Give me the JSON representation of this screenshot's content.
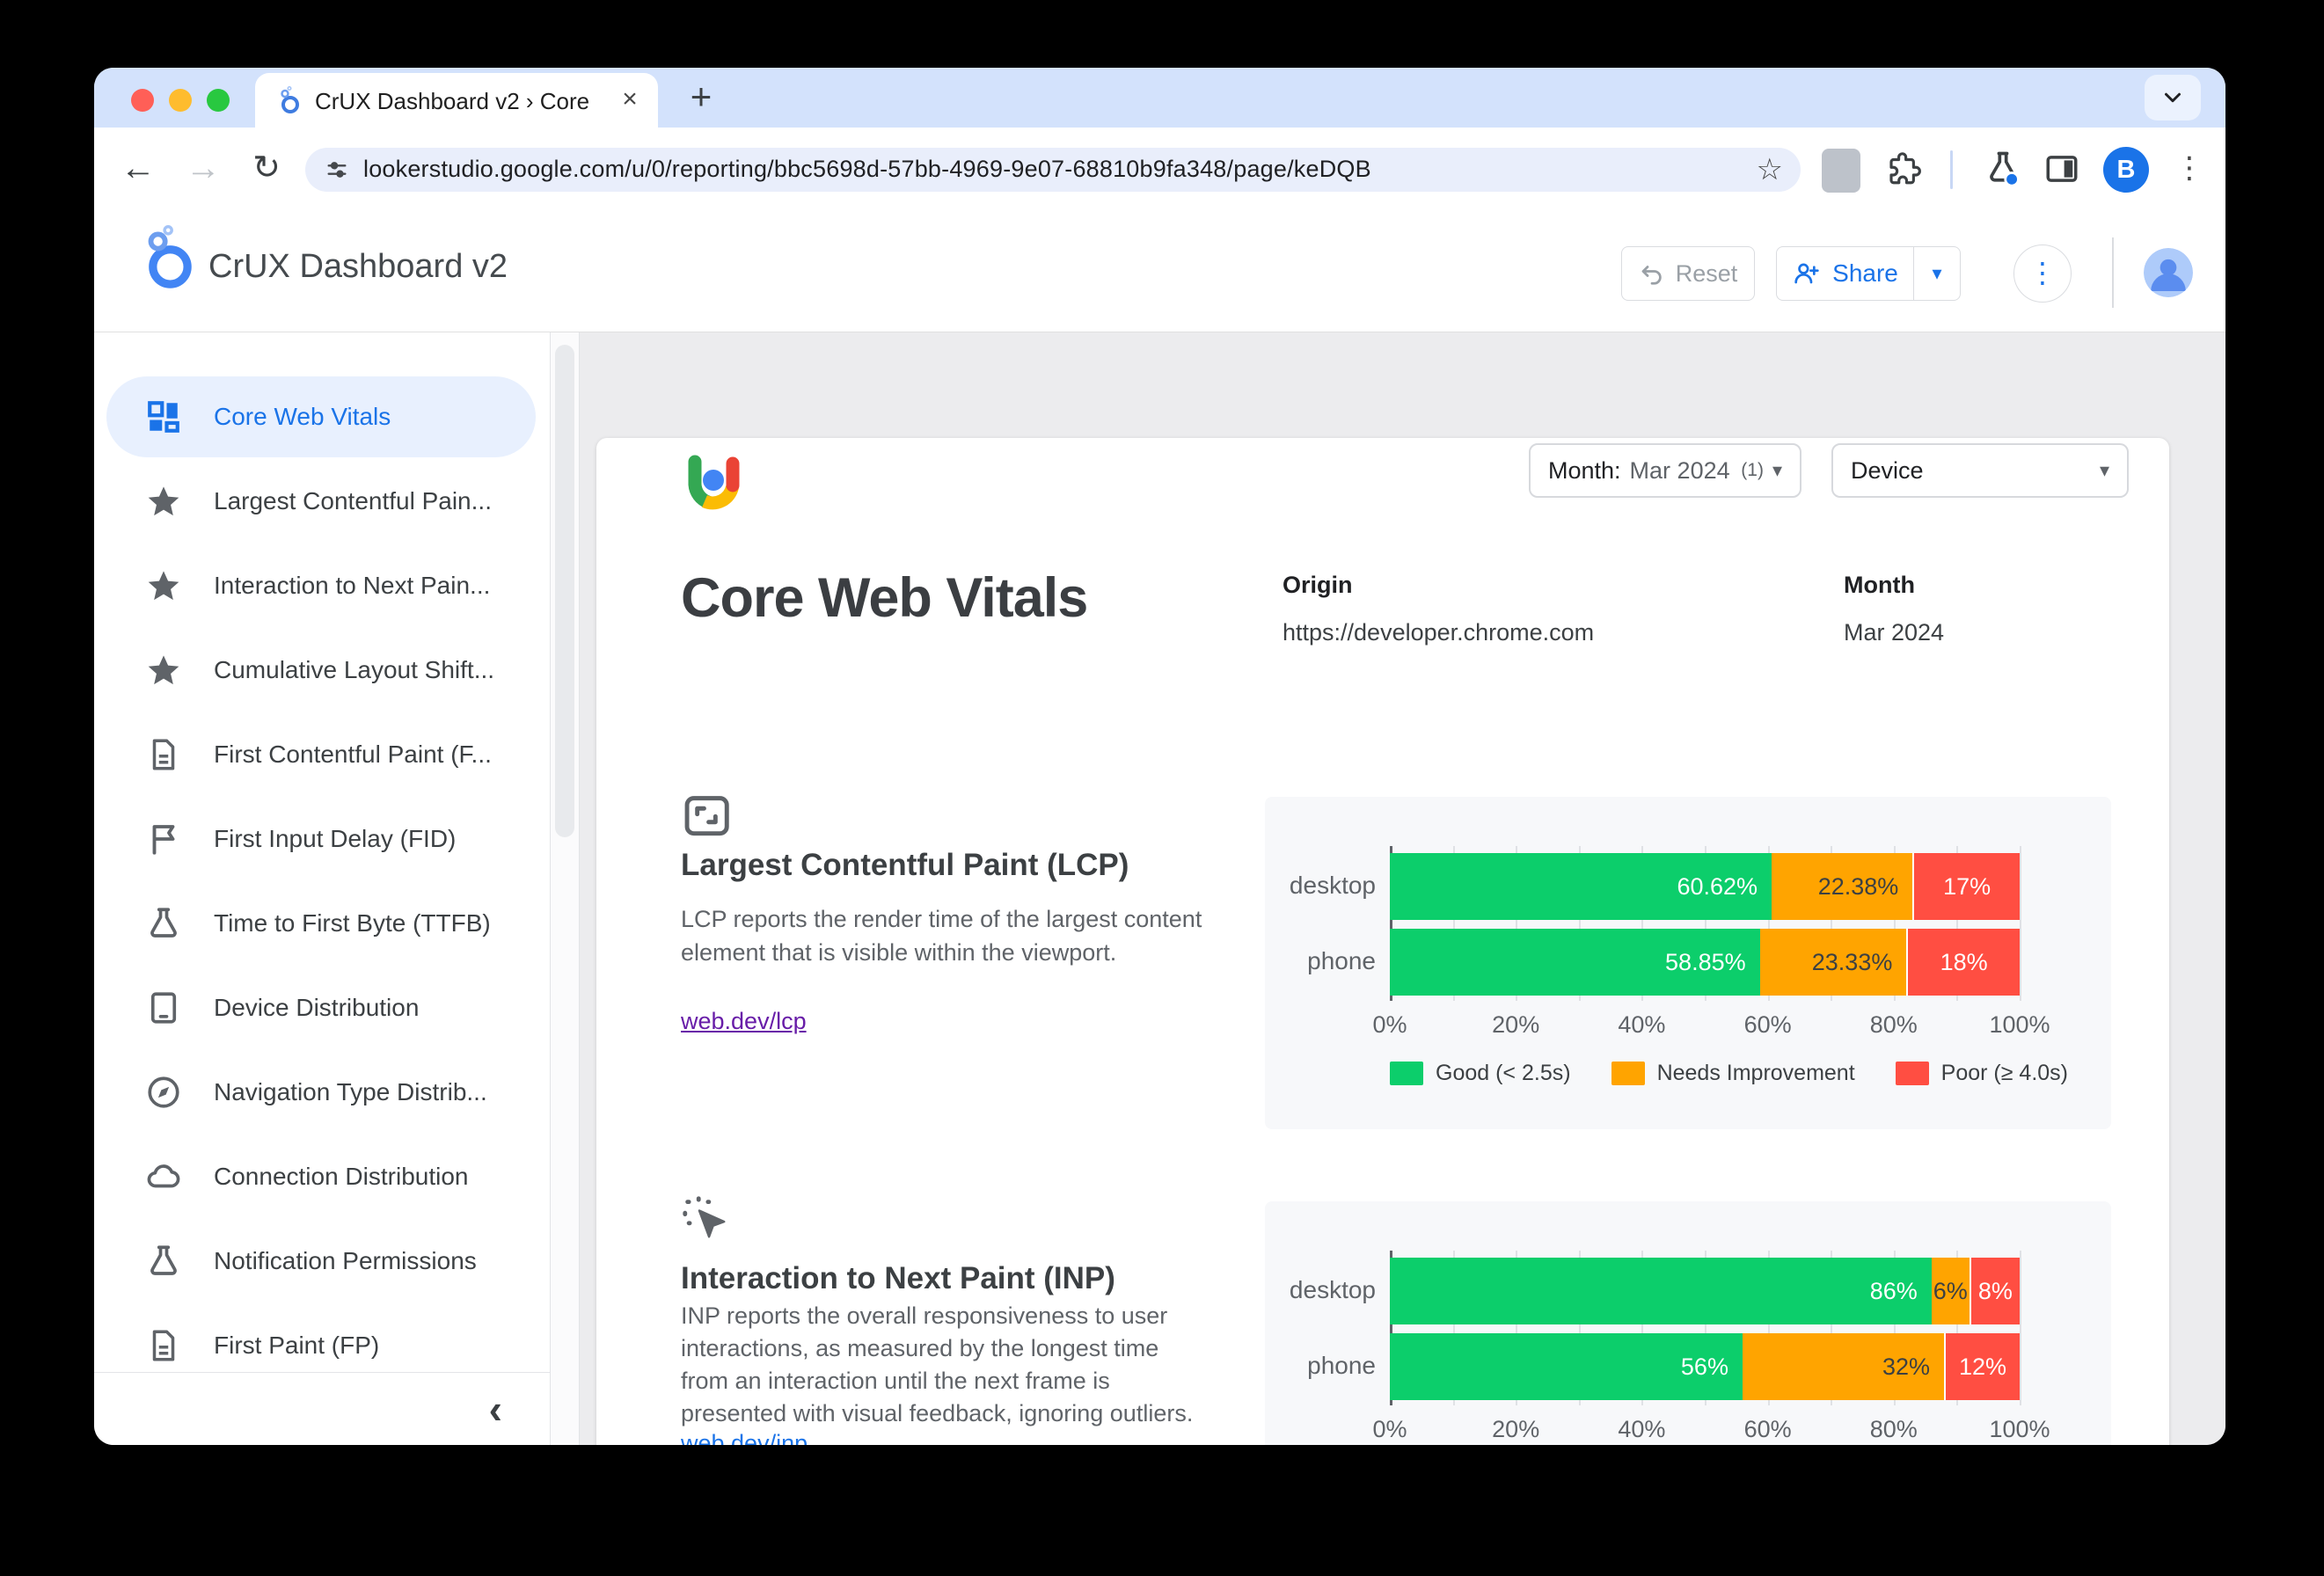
{
  "colors": {
    "good": "#0cce6b",
    "needs_improvement": "#ffa400",
    "poor": "#ff4e42",
    "accent": "#1a73e8",
    "active_bg": "#e8f0fe"
  },
  "icons": {
    "close": "×",
    "new_tab": "+",
    "back": "←",
    "forward": "→",
    "reload": "↻",
    "bookmark_star": "☆",
    "kebab": "⋮",
    "caret_down": "▾",
    "collapse": "‹"
  },
  "browser": {
    "tab_title": "CrUX Dashboard v2 › Core W",
    "url": "lookerstudio.google.com/u/0/reporting/bbc5698d-57bb-4969-9e07-68810b9fa348/page/keDQB",
    "profile_initial": "B"
  },
  "app_header": {
    "title": "CrUX Dashboard v2",
    "reset_label": "Reset",
    "share_label": "Share"
  },
  "sidebar": {
    "items": [
      {
        "label": "Core Web Vitals",
        "icon": "dashboard",
        "active": true
      },
      {
        "label": "Largest Contentful Pain...",
        "icon": "star",
        "active": false
      },
      {
        "label": "Interaction to Next Pain...",
        "icon": "star",
        "active": false
      },
      {
        "label": "Cumulative Layout Shift...",
        "icon": "star",
        "active": false
      },
      {
        "label": "First Contentful Paint (F...",
        "icon": "document",
        "active": false
      },
      {
        "label": "First Input Delay (FID)",
        "icon": "flag",
        "active": false
      },
      {
        "label": "Time to First Byte (TTFB)",
        "icon": "flask",
        "active": false
      },
      {
        "label": "Device Distribution",
        "icon": "tablet",
        "active": false
      },
      {
        "label": "Navigation Type Distrib...",
        "icon": "compass",
        "active": false
      },
      {
        "label": "Connection Distribution",
        "icon": "cloud",
        "active": false
      },
      {
        "label": "Notification Permissions",
        "icon": "flask",
        "active": false
      },
      {
        "label": "First Paint (FP)",
        "icon": "document",
        "active": false
      }
    ]
  },
  "filters": {
    "month_prefix": "Month:",
    "month_value": "Mar 2024",
    "month_count": "(1)",
    "device_label": "Device"
  },
  "report": {
    "title": "Core Web Vitals",
    "origin_label": "Origin",
    "origin_value": "https://developer.chrome.com",
    "month_label": "Month",
    "month_value": "Mar 2024"
  },
  "sections": {
    "lcp": {
      "heading": "Largest Contentful Paint (LCP)",
      "description": "LCP reports the render time of the largest content element that is visible within the viewport.",
      "link": "web.dev/lcp"
    },
    "inp": {
      "heading": "Interaction to Next Paint (INP)",
      "description": "INP reports the overall responsiveness to user interactions, as measured by the longest time from an interaction until the next frame is presented with visual feedback, ignoring outliers.",
      "link": "web.dev/inp"
    }
  },
  "chart_data": [
    {
      "id": "lcp",
      "type": "bar",
      "stacked": true,
      "orientation": "horizontal",
      "title": "Largest Contentful Paint (LCP)",
      "categories": [
        "desktop",
        "phone"
      ],
      "series": [
        {
          "name": "Good (< 2.5s)",
          "color": "#0cce6b",
          "values": [
            60.62,
            58.85
          ],
          "labels": [
            "60.62%",
            "58.85%"
          ]
        },
        {
          "name": "Needs Improvement",
          "color": "#ffa400",
          "values": [
            22.38,
            23.33
          ],
          "labels": [
            "22.38%",
            "23.33%"
          ]
        },
        {
          "name": "Poor (≥ 4.0s)",
          "color": "#ff4e42",
          "values": [
            17,
            18
          ],
          "labels": [
            "17%",
            "18%"
          ]
        }
      ],
      "x_ticks": [
        "0%",
        "20%",
        "40%",
        "60%",
        "80%",
        "100%"
      ],
      "xlim": [
        0,
        100
      ],
      "grid": true,
      "legend_visible": true,
      "legend_position": "bottom"
    },
    {
      "id": "inp",
      "type": "bar",
      "stacked": true,
      "orientation": "horizontal",
      "title": "Interaction to Next Paint (INP)",
      "categories": [
        "desktop",
        "phone"
      ],
      "series": [
        {
          "name": "Good (< 2.5s)",
          "color": "#0cce6b",
          "values": [
            86,
            56
          ],
          "labels": [
            "86%",
            "56%"
          ]
        },
        {
          "name": "Needs Improvement",
          "color": "#ffa400",
          "values": [
            6,
            32
          ],
          "labels": [
            "6%",
            "32%"
          ]
        },
        {
          "name": "Poor (≥ 4.0s)",
          "color": "#ff4e42",
          "values": [
            8,
            12
          ],
          "labels": [
            "8%",
            "12%"
          ]
        }
      ],
      "x_ticks": [
        "0%",
        "20%",
        "40%",
        "60%",
        "80%",
        "100%"
      ],
      "xlim": [
        0,
        100
      ],
      "grid": true,
      "legend_visible": false,
      "legend_position": "bottom"
    }
  ]
}
